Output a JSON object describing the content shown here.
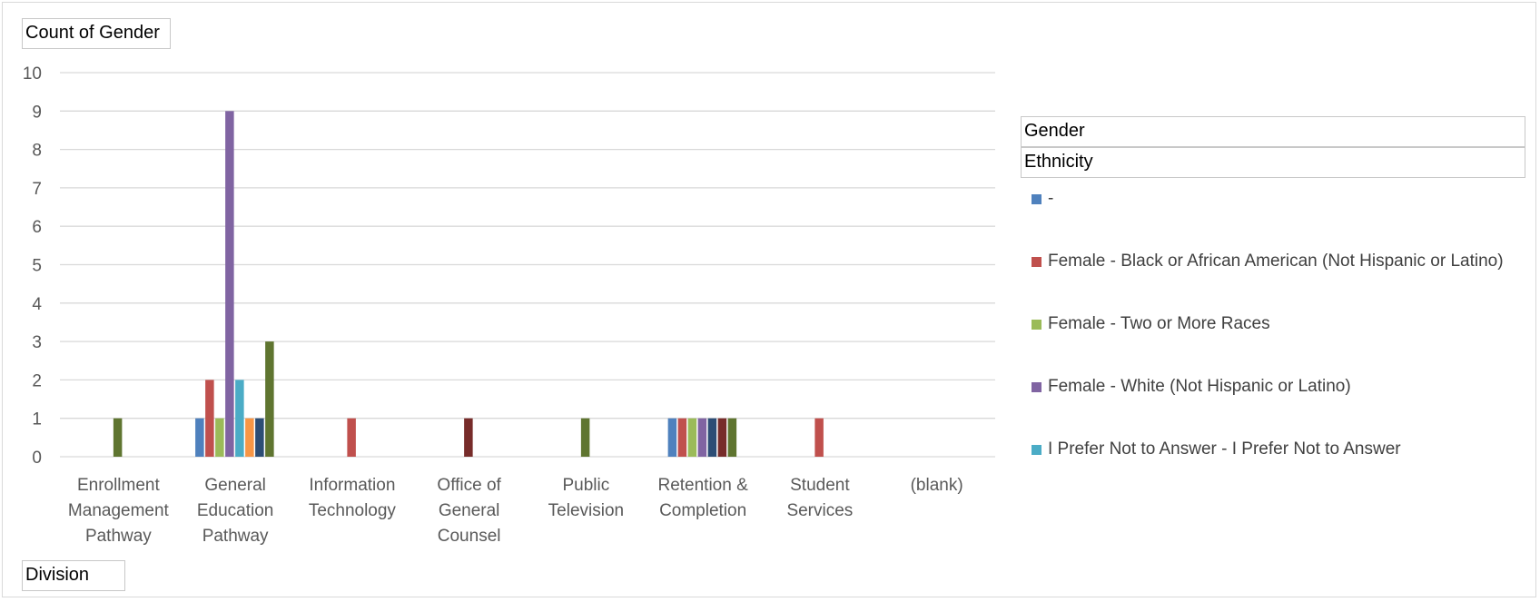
{
  "chart_data": {
    "type": "bar",
    "value_field": "Count of Gender",
    "axis_field": "Division",
    "legend_fields": [
      "Gender",
      "Ethnicity"
    ],
    "categories": [
      [
        "Enrollment",
        "Management",
        "Pathway"
      ],
      [
        "General",
        "Education",
        "Pathway"
      ],
      [
        "Information",
        "Technology"
      ],
      [
        "Office of",
        "General",
        "Counsel"
      ],
      [
        "Public",
        "Television"
      ],
      [
        "Retention &",
        "Completion"
      ],
      [
        "Student",
        "Services"
      ],
      [
        "(blank)"
      ]
    ],
    "ylim": [
      0,
      10
    ],
    "yticks": [
      0,
      1,
      2,
      3,
      4,
      5,
      6,
      7,
      8,
      9,
      10
    ],
    "grid": true,
    "legend_position": "right",
    "series": [
      {
        "name": "-",
        "color": "#4f81bd",
        "values": [
          null,
          1,
          null,
          null,
          null,
          1,
          null,
          null
        ]
      },
      {
        "name": "Female - Black or African American (Not Hispanic or Latino)",
        "color": "#c0504d",
        "values": [
          null,
          2,
          1,
          null,
          null,
          1,
          1,
          null
        ]
      },
      {
        "name": "Female - Two or More Races",
        "color": "#9bbb59",
        "values": [
          null,
          1,
          null,
          null,
          null,
          1,
          null,
          null
        ]
      },
      {
        "name": "Female - White (Not Hispanic or Latino)",
        "color": "#8064a2",
        "values": [
          null,
          9,
          null,
          null,
          null,
          1,
          null,
          null
        ]
      },
      {
        "name": "I Prefer Not to Answer - I Prefer Not to Answer",
        "color": "#4bacc6",
        "values": [
          null,
          2,
          null,
          null,
          null,
          null,
          null,
          null
        ]
      },
      {
        "name": "",
        "color": "#f79646",
        "values": [
          null,
          1,
          null,
          null,
          null,
          null,
          null,
          null
        ]
      },
      {
        "name": "",
        "color": "#2c4d75",
        "values": [
          null,
          1,
          null,
          null,
          null,
          1,
          null,
          null
        ]
      },
      {
        "name": "",
        "color": "#772c2a",
        "values": [
          null,
          null,
          null,
          1,
          null,
          1,
          null,
          null
        ]
      },
      {
        "name": "",
        "color": "#5f7530",
        "values": [
          1,
          3,
          null,
          null,
          1,
          1,
          null,
          null
        ]
      }
    ]
  }
}
